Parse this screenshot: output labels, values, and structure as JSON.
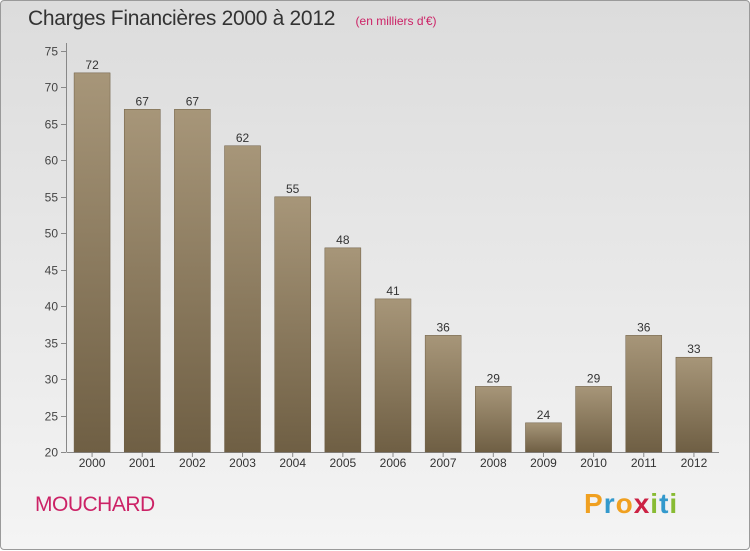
{
  "chart_data": {
    "type": "bar",
    "title": "Charges Financières 2000 à 2012",
    "subtitle": "(en milliers d'€)",
    "categories": [
      "2000",
      "2001",
      "2002",
      "2003",
      "2004",
      "2005",
      "2006",
      "2007",
      "2008",
      "2009",
      "2010",
      "2011",
      "2012"
    ],
    "values": [
      72,
      67,
      67,
      62,
      55,
      48,
      41,
      36,
      29,
      24,
      29,
      36,
      33
    ],
    "yticks": [
      20,
      25,
      30,
      35,
      40,
      45,
      50,
      55,
      60,
      65,
      70,
      75
    ],
    "ylim": [
      20,
      75
    ],
    "grid": false,
    "bar_color_top": "#a79679",
    "bar_color_bottom": "#6f5f44"
  },
  "footer": {
    "place": "MOUCHARD",
    "logo_letters": [
      {
        "ch": "P",
        "color": "#f0a020"
      },
      {
        "ch": "r",
        "color": "#3399cc"
      },
      {
        "ch": "o",
        "color": "#f0a020"
      },
      {
        "ch": "x",
        "color": "#cc2244"
      },
      {
        "ch": "i",
        "color": "#88bb33"
      },
      {
        "ch": "t",
        "color": "#3399cc"
      },
      {
        "ch": "i",
        "color": "#88bb33"
      }
    ]
  }
}
